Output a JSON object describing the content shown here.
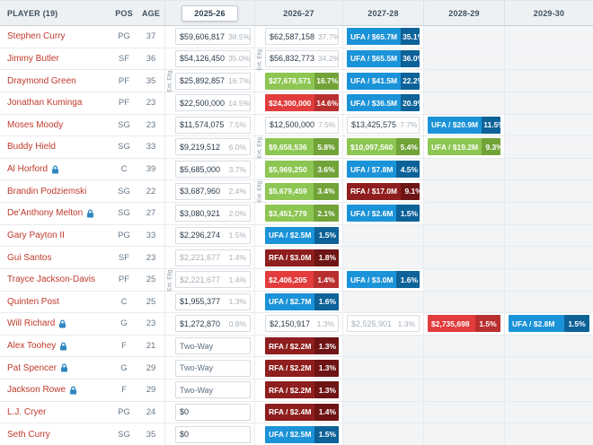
{
  "header": {
    "player": "PLAYER (19)",
    "pos": "POS",
    "age": "AGE",
    "seasons": [
      "2025-26",
      "2026-27",
      "2027-28",
      "2028-29",
      "2029-30"
    ],
    "active_season": "2025-26"
  },
  "ext_elig_label": "Ext. Elig.",
  "colors": {
    "player_link": "#c0392b",
    "icon_blue": "#2e86c1",
    "ufa_main": "#1b93d8",
    "ufa_dark": "#0d6298",
    "green_main": "#8dc652",
    "green_dark": "#71a339",
    "red_main": "#e23c3c",
    "red_dark": "#b92f2f",
    "rfa_main": "#8f1e1e",
    "rfa_dark": "#6e1414"
  },
  "rows": [
    {
      "player": "Stephen Curry",
      "pos": "PG",
      "age": "37",
      "icon": false,
      "ext_col": null,
      "cells": [
        {
          "kind": "salary",
          "value": "$59,606,817",
          "pct": "38.5%"
        },
        {
          "kind": "salary",
          "value": "$62,587,158",
          "pct": "37.7%"
        },
        {
          "kind": "option",
          "style": "ufa",
          "label": "UFA / $65.7M",
          "pct": "35.1%"
        },
        null,
        null
      ]
    },
    {
      "player": "Jimmy Butler",
      "pos": "SF",
      "age": "36",
      "icon": false,
      "ext_col": 1,
      "cells": [
        {
          "kind": "salary",
          "value": "$54,126,450",
          "pct": "35.0%"
        },
        {
          "kind": "salary",
          "value": "$56,832,773",
          "pct": "34.2%"
        },
        {
          "kind": "option",
          "style": "ufa",
          "label": "UFA / $65.5M",
          "pct": "36.0%"
        },
        null,
        null
      ]
    },
    {
      "player": "Draymond Green",
      "pos": "PF",
      "age": "35",
      "icon": false,
      "ext_col": 0,
      "cells": [
        {
          "kind": "salary",
          "value": "$25,892,857",
          "pct": "16.7%"
        },
        {
          "kind": "option",
          "style": "green",
          "label": "$27,678,571",
          "pct": "16.7%"
        },
        {
          "kind": "option",
          "style": "ufa",
          "label": "UFA / $41.5M",
          "pct": "22.2%"
        },
        null,
        null
      ]
    },
    {
      "player": "Jonathan Kuminga",
      "pos": "PF",
      "age": "23",
      "icon": false,
      "ext_col": null,
      "cells": [
        {
          "kind": "salary",
          "value": "$22,500,000",
          "pct": "14.5%"
        },
        {
          "kind": "option",
          "style": "red",
          "label": "$24,300,000",
          "pct": "14.6%"
        },
        {
          "kind": "option",
          "style": "ufa",
          "label": "UFA / $36.5M",
          "pct": "20.9%"
        },
        null,
        null
      ]
    },
    {
      "player": "Moses Moody",
      "pos": "SG",
      "age": "23",
      "icon": false,
      "ext_col": null,
      "cells": [
        {
          "kind": "salary",
          "value": "$11,574,075",
          "pct": "7.5%"
        },
        {
          "kind": "salary",
          "value": "$12,500,000",
          "pct": "7.5%"
        },
        {
          "kind": "salary",
          "value": "$13,425,575",
          "pct": "7.7%"
        },
        {
          "kind": "option",
          "style": "ufa",
          "label": "UFA / $20.9M",
          "pct": "11.5%"
        },
        null
      ]
    },
    {
      "player": "Buddy Hield",
      "pos": "SG",
      "age": "33",
      "icon": false,
      "ext_col": 1,
      "cells": [
        {
          "kind": "salary",
          "value": "$9,219,512",
          "pct": "6.0%"
        },
        {
          "kind": "option",
          "style": "green",
          "label": "$9,658,536",
          "pct": "5.8%"
        },
        {
          "kind": "option",
          "style": "green",
          "label": "$10,097,560",
          "pct": "5.4%"
        },
        {
          "kind": "option",
          "style": "green",
          "label": "UFA / $19.2M",
          "pct": "9.3%"
        },
        null
      ]
    },
    {
      "player": "Al Horford",
      "pos": "C",
      "age": "39",
      "icon": true,
      "ext_col": null,
      "cells": [
        {
          "kind": "salary",
          "value": "$5,685,000",
          "pct": "3.7%"
        },
        {
          "kind": "option",
          "style": "green",
          "label": "$5,969,250",
          "pct": "3.6%"
        },
        {
          "kind": "option",
          "style": "ufa",
          "label": "UFA / $7.8M",
          "pct": "4.5%"
        },
        null,
        null
      ]
    },
    {
      "player": "Brandin Podziemski",
      "pos": "SG",
      "age": "22",
      "icon": false,
      "ext_col": 1,
      "cells": [
        {
          "kind": "salary",
          "value": "$3,687,960",
          "pct": "2.4%"
        },
        {
          "kind": "option",
          "style": "green",
          "label": "$5,679,459",
          "pct": "3.4%"
        },
        {
          "kind": "option",
          "style": "rfa",
          "label": "RFA / $17.0M",
          "pct": "9.1%"
        },
        null,
        null
      ]
    },
    {
      "player": "De'Anthony Melton",
      "pos": "SG",
      "age": "27",
      "icon": true,
      "ext_col": null,
      "cells": [
        {
          "kind": "salary",
          "value": "$3,080,921",
          "pct": "2.0%"
        },
        {
          "kind": "option",
          "style": "green",
          "label": "$3,451,779",
          "pct": "2.1%"
        },
        {
          "kind": "option",
          "style": "ufa",
          "label": "UFA / $2.6M",
          "pct": "1.5%"
        },
        null,
        null
      ]
    },
    {
      "player": "Gary Payton II",
      "pos": "PG",
      "age": "33",
      "icon": false,
      "ext_col": null,
      "cells": [
        {
          "kind": "salary",
          "value": "$2,296,274",
          "pct": "1.5%"
        },
        {
          "kind": "option",
          "style": "ufa",
          "label": "UFA / $2.5M",
          "pct": "1.5%"
        },
        null,
        null,
        null
      ]
    },
    {
      "player": "Gui Santos",
      "pos": "SF",
      "age": "23",
      "icon": false,
      "ext_col": null,
      "cells": [
        {
          "kind": "salary",
          "value": "$2,221,677",
          "pct": "1.4%",
          "muted": true
        },
        {
          "kind": "option",
          "style": "rfa",
          "label": "RFA / $3.0M",
          "pct": "1.8%"
        },
        null,
        null,
        null
      ]
    },
    {
      "player": "Trayce Jackson-Davis",
      "pos": "PF",
      "age": "25",
      "icon": false,
      "ext_col": 0,
      "cells": [
        {
          "kind": "salary",
          "value": "$2,221,677",
          "pct": "1.4%",
          "muted": true
        },
        {
          "kind": "option",
          "style": "red",
          "label": "$2,406,205",
          "pct": "1.4%"
        },
        {
          "kind": "option",
          "style": "ufa",
          "label": "UFA / $3.0M",
          "pct": "1.6%"
        },
        null,
        null
      ]
    },
    {
      "player": "Quinten Post",
      "pos": "C",
      "age": "25",
      "icon": false,
      "ext_col": null,
      "cells": [
        {
          "kind": "salary",
          "value": "$1,955,377",
          "pct": "1.3%"
        },
        {
          "kind": "option",
          "style": "ufa",
          "label": "UFA / $2.7M",
          "pct": "1.6%"
        },
        null,
        null,
        null
      ]
    },
    {
      "player": "Will Richard",
      "pos": "G",
      "age": "23",
      "icon": true,
      "ext_col": null,
      "cells": [
        {
          "kind": "salary",
          "value": "$1,272,870",
          "pct": "0.8%"
        },
        {
          "kind": "salary",
          "value": "$2,150,917",
          "pct": "1.3%"
        },
        {
          "kind": "salary",
          "value": "$2,525,901",
          "pct": "1.3%",
          "muted": true
        },
        {
          "kind": "option",
          "style": "red",
          "label": "$2,735,698",
          "pct": "1.5%"
        },
        {
          "kind": "option",
          "style": "ufa",
          "label": "UFA / $2.8M",
          "pct": "1.5%"
        }
      ]
    },
    {
      "player": "Alex Toohey",
      "pos": "F",
      "age": "21",
      "icon": true,
      "ext_col": null,
      "cells": [
        {
          "kind": "plain",
          "value": "Two-Way"
        },
        {
          "kind": "option",
          "style": "rfa",
          "label": "RFA / $2.2M",
          "pct": "1.3%"
        },
        null,
        null,
        null
      ]
    },
    {
      "player": "Pat Spencer",
      "pos": "G",
      "age": "29",
      "icon": true,
      "ext_col": null,
      "cells": [
        {
          "kind": "plain",
          "value": "Two-Way"
        },
        {
          "kind": "option",
          "style": "rfa",
          "label": "RFA / $2.2M",
          "pct": "1.3%"
        },
        null,
        null,
        null
      ]
    },
    {
      "player": "Jackson Rowe",
      "pos": "F",
      "age": "29",
      "icon": true,
      "ext_col": null,
      "cells": [
        {
          "kind": "plain",
          "value": "Two-Way"
        },
        {
          "kind": "option",
          "style": "rfa",
          "label": "RFA / $2.2M",
          "pct": "1.3%"
        },
        null,
        null,
        null
      ]
    },
    {
      "player": "L.J. Cryer",
      "pos": "PG",
      "age": "24",
      "icon": false,
      "ext_col": null,
      "cells": [
        {
          "kind": "salary",
          "value": "$0",
          "pct": ""
        },
        {
          "kind": "option",
          "style": "rfa",
          "label": "RFA / $2.4M",
          "pct": "1.4%"
        },
        null,
        null,
        null
      ]
    },
    {
      "player": "Seth Curry",
      "pos": "SG",
      "age": "35",
      "icon": false,
      "ext_col": null,
      "cells": [
        {
          "kind": "salary",
          "value": "$0",
          "pct": ""
        },
        {
          "kind": "option",
          "style": "ufa",
          "label": "UFA / $2.5M",
          "pct": "1.5%"
        },
        null,
        null,
        null
      ]
    }
  ]
}
